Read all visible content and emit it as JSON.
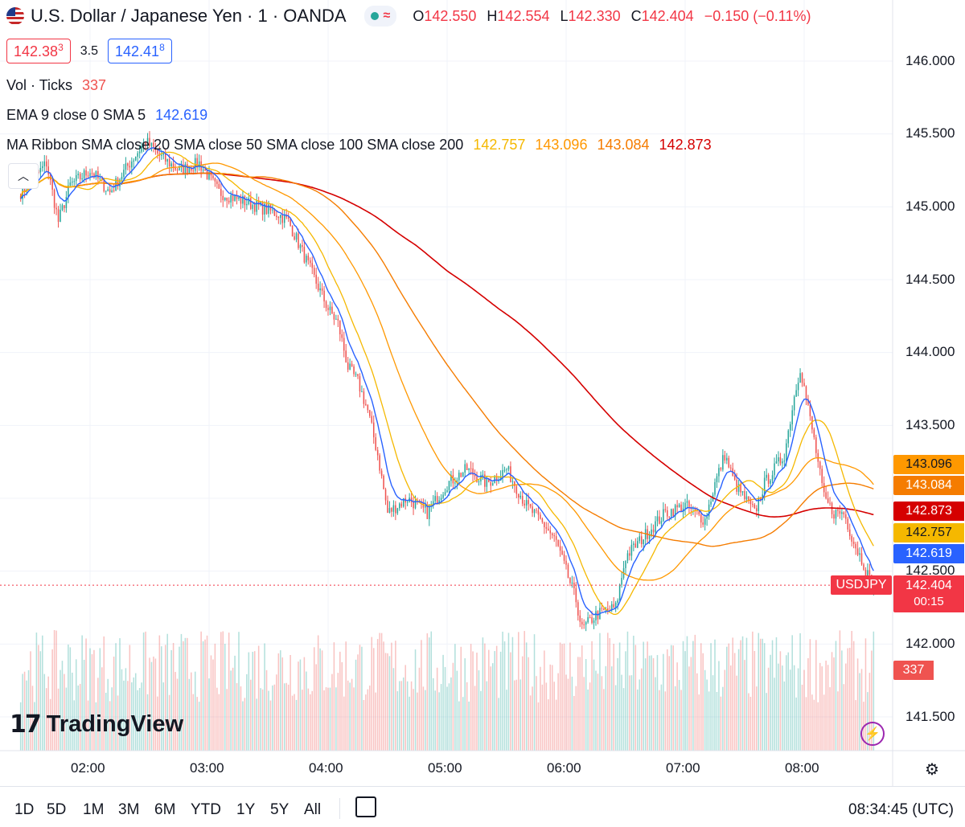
{
  "header": {
    "symbol_title": "U.S. Dollar / Japanese Yen · 1 · OANDA",
    "ohlc": [
      {
        "k": "O",
        "v": "142.550"
      },
      {
        "k": "H",
        "v": "142.554"
      },
      {
        "k": "L",
        "v": "142.330"
      },
      {
        "k": "C",
        "v": "142.404"
      }
    ],
    "change": "−0.150 (−0.11%)",
    "sell_price": "142.38",
    "sell_price_sup": "3",
    "spread": "3.5",
    "buy_price": "142.41",
    "buy_price_sup": "8"
  },
  "indicators": {
    "vol": {
      "label": "Vol · Ticks",
      "value": "337"
    },
    "ema": {
      "label": "EMA 9 close 0 SMA 5",
      "value": "142.619"
    },
    "ribbon": {
      "label": "MA Ribbon SMA close 20 SMA close 50 SMA close 100 SMA close 200",
      "values": [
        "142.757",
        "143.096",
        "143.084",
        "142.873"
      ]
    }
  },
  "colors": {
    "up": "#26a69a",
    "down": "#ef5350",
    "ema": "#2962ff",
    "ma20": "#f5b800",
    "ma50": "#ff9800",
    "ma100": "#f57c00",
    "ma200": "#d50000",
    "last_price": "#f23645"
  },
  "price_axis": [
    "146.000",
    "145.500",
    "145.000",
    "144.500",
    "144.000",
    "143.500",
    "142.500",
    "142.000",
    "141.500"
  ],
  "time_axis": [
    "02:00",
    "03:00",
    "04:00",
    "05:00",
    "06:00",
    "07:00",
    "08:00"
  ],
  "tags": {
    "ma50": "143.096",
    "ma100": "143.084",
    "ma200": "142.873",
    "ma20": "142.757",
    "ema": "142.619",
    "last": "142.404",
    "countdown": "00:15",
    "symbol": "USDJPY",
    "volume": "337"
  },
  "timeframes": [
    "1D",
    "5D",
    "1M",
    "3M",
    "6M",
    "YTD",
    "1Y",
    "5Y",
    "All"
  ],
  "clock": "08:34:45 (UTC)",
  "logo": "TradingView",
  "chart_data": {
    "type": "candlestick",
    "symbol": "USDJPY",
    "interval_minutes": 1,
    "ylim": [
      141.3,
      146.3
    ],
    "x_range": [
      "01:25",
      "08:35"
    ],
    "close_anchors": [
      [
        "01:25",
        145.1
      ],
      [
        "01:32",
        145.2
      ],
      [
        "01:38",
        145.3
      ],
      [
        "01:44",
        144.9
      ],
      [
        "01:50",
        145.15
      ],
      [
        "02:00",
        145.25
      ],
      [
        "02:10",
        145.1
      ],
      [
        "02:20",
        145.3
      ],
      [
        "02:28",
        145.45
      ],
      [
        "02:35",
        145.35
      ],
      [
        "02:45",
        145.25
      ],
      [
        "02:55",
        145.3
      ],
      [
        "03:05",
        145.1
      ],
      [
        "03:15",
        145.05
      ],
      [
        "03:25",
        145.0
      ],
      [
        "03:35",
        144.95
      ],
      [
        "03:40",
        144.9
      ],
      [
        "03:50",
        144.6
      ],
      [
        "04:00",
        144.3
      ],
      [
        "04:05",
        144.2
      ],
      [
        "04:10",
        143.9
      ],
      [
        "04:15",
        143.8
      ],
      [
        "04:20",
        143.6
      ],
      [
        "04:25",
        143.3
      ],
      [
        "04:30",
        142.9
      ],
      [
        "04:40",
        143.0
      ],
      [
        "04:50",
        142.9
      ],
      [
        "05:00",
        143.1
      ],
      [
        "05:10",
        143.2
      ],
      [
        "05:20",
        143.1
      ],
      [
        "05:30",
        143.2
      ],
      [
        "05:40",
        142.95
      ],
      [
        "05:50",
        142.8
      ],
      [
        "05:55",
        142.7
      ],
      [
        "06:00",
        142.5
      ],
      [
        "06:05",
        142.3
      ],
      [
        "06:08",
        142.1
      ],
      [
        "06:15",
        142.2
      ],
      [
        "06:25",
        142.25
      ],
      [
        "06:30",
        142.6
      ],
      [
        "06:40",
        142.75
      ],
      [
        "06:50",
        142.9
      ],
      [
        "07:00",
        142.95
      ],
      [
        "07:10",
        142.85
      ],
      [
        "07:15",
        143.1
      ],
      [
        "07:20",
        143.3
      ],
      [
        "07:25",
        143.1
      ],
      [
        "07:35",
        142.9
      ],
      [
        "07:40",
        143.1
      ],
      [
        "07:50",
        143.3
      ],
      [
        "07:55",
        143.7
      ],
      [
        "07:58",
        143.9
      ],
      [
        "08:05",
        143.4
      ],
      [
        "08:10",
        143.0
      ],
      [
        "08:15",
        142.9
      ],
      [
        "08:20",
        142.9
      ],
      [
        "08:25",
        142.7
      ],
      [
        "08:30",
        142.55
      ],
      [
        "08:34",
        142.404
      ]
    ]
  }
}
